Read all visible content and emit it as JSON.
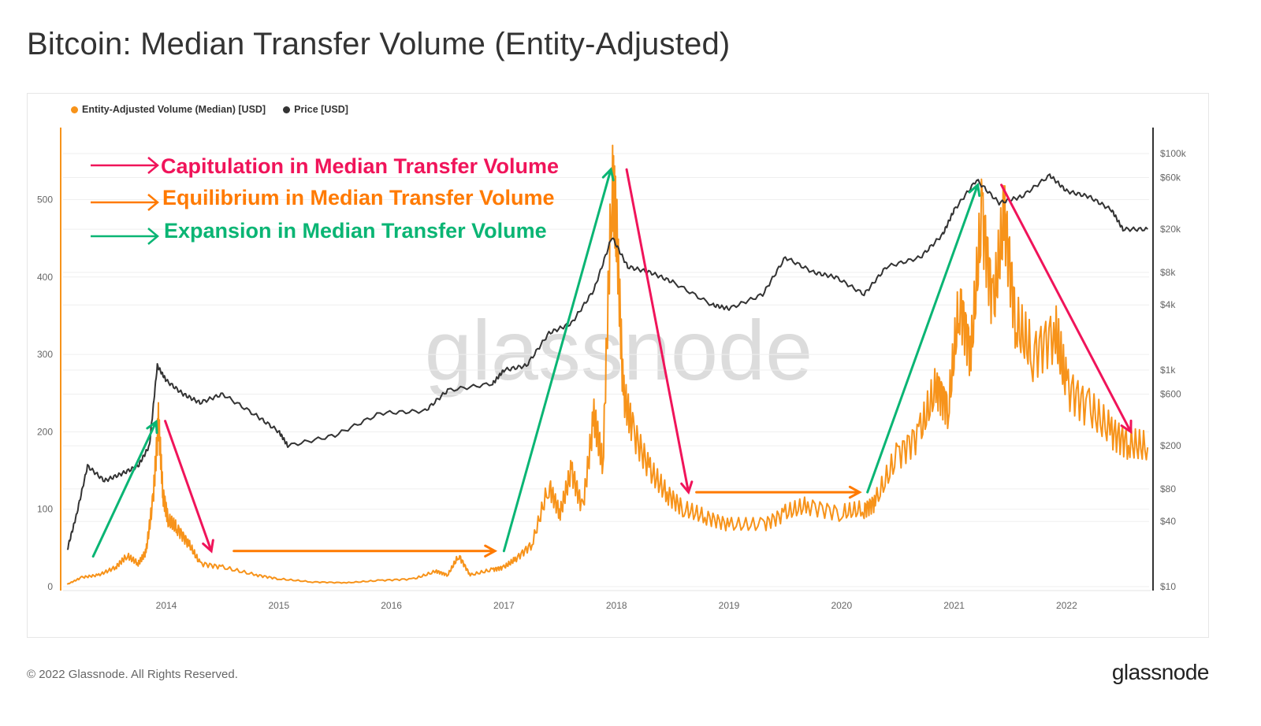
{
  "title": "Bitcoin: Median Transfer Volume (Entity-Adjusted)",
  "footer": "© 2022 Glassnode. All Rights Reserved.",
  "brand": "glassnode",
  "watermark": "glassnode",
  "annotations_text": {
    "capitulation": "Capitulation in Median Transfer Volume",
    "equilibrium": "Equilibrium in Median Transfer Volume",
    "expansion": "Expansion in Median Transfer Volume"
  },
  "colors": {
    "volume": "#f7931a",
    "price": "#333333",
    "capitulation": "#f0145a",
    "equilibrium": "#ff7a00",
    "expansion": "#0ab574"
  },
  "chart_data": {
    "type": "line",
    "title": "Bitcoin: Median Transfer Volume (Entity-Adjusted)",
    "legend": [
      "Entity-Adjusted Volume (Median) [USD]",
      "Price [USD]"
    ],
    "legend_placement": "top-left",
    "x_ticks": [
      "2014",
      "2015",
      "2016",
      "2017",
      "2018",
      "2019",
      "2020",
      "2021",
      "2022"
    ],
    "xlim": [
      2013.12,
      2022.72
    ],
    "y_left": {
      "ticks": [
        "0",
        "100",
        "200",
        "300",
        "400",
        "500"
      ],
      "values": [
        0,
        100,
        200,
        300,
        400,
        500
      ],
      "ylim": [
        0,
        560
      ],
      "scale": "linear"
    },
    "y_right": {
      "ticks": [
        "$10",
        "$40",
        "$80",
        "$200",
        "$600",
        "$1k",
        "$4k",
        "$8k",
        "$20k",
        "$60k",
        "$100k"
      ],
      "values": [
        10,
        40,
        80,
        200,
        600,
        1000,
        4000,
        8000,
        20000,
        60000,
        100000
      ],
      "scale": "log"
    },
    "series": [
      {
        "name": "Entity-Adjusted Volume (Median) [USD]",
        "axis": "left",
        "x": [
          2013.12,
          2013.25,
          2013.4,
          2013.55,
          2013.65,
          2013.75,
          2013.82,
          2013.88,
          2013.93,
          2013.97,
          2014.02,
          2014.1,
          2014.2,
          2014.3,
          2014.5,
          2014.8,
          2015.0,
          2015.3,
          2015.6,
          2015.9,
          2016.2,
          2016.4,
          2016.5,
          2016.6,
          2016.7,
          2016.9,
          2017.0,
          2017.1,
          2017.25,
          2017.4,
          2017.5,
          2017.6,
          2017.7,
          2017.8,
          2017.88,
          2017.96,
          2018.0,
          2018.06,
          2018.15,
          2018.3,
          2018.45,
          2018.6,
          2018.8,
          2019.0,
          2019.3,
          2019.5,
          2019.7,
          2020.0,
          2020.2,
          2020.3,
          2020.5,
          2020.7,
          2020.85,
          2020.95,
          2021.05,
          2021.15,
          2021.25,
          2021.35,
          2021.45,
          2021.55,
          2021.7,
          2021.9,
          2022.0,
          2022.2,
          2022.4,
          2022.55,
          2022.72
        ],
        "values": [
          3,
          12,
          15,
          25,
          40,
          30,
          45,
          110,
          213,
          120,
          85,
          75,
          55,
          30,
          25,
          15,
          10,
          6,
          5,
          8,
          10,
          20,
          15,
          40,
          15,
          22,
          25,
          35,
          55,
          130,
          95,
          150,
          100,
          220,
          160,
          524,
          470,
          250,
          200,
          150,
          120,
          100,
          90,
          80,
          80,
          95,
          105,
          95,
          100,
          110,
          170,
          200,
          260,
          230,
          370,
          300,
          483,
          360,
          480,
          340,
          300,
          330,
          260,
          230,
          200,
          185,
          180
        ]
      },
      {
        "name": "Price [USD]",
        "axis": "right",
        "x": [
          2013.12,
          2013.2,
          2013.3,
          2013.45,
          2013.6,
          2013.75,
          2013.85,
          2013.92,
          2014.0,
          2014.15,
          2014.3,
          2014.5,
          2014.8,
          2015.0,
          2015.08,
          2015.5,
          2015.9,
          2016.3,
          2016.5,
          2016.9,
          2017.0,
          2017.2,
          2017.4,
          2017.6,
          2017.8,
          2017.96,
          2018.1,
          2018.3,
          2018.5,
          2018.85,
          2019.0,
          2019.3,
          2019.5,
          2019.75,
          2019.95,
          2020.2,
          2020.4,
          2020.7,
          2020.9,
          2021.0,
          2021.2,
          2021.4,
          2021.6,
          2021.85,
          2022.0,
          2022.2,
          2022.4,
          2022.5,
          2022.72
        ],
        "values": [
          22,
          45,
          130,
          95,
          110,
          130,
          200,
          1100,
          800,
          600,
          500,
          600,
          380,
          270,
          200,
          250,
          400,
          420,
          650,
          750,
          1000,
          1100,
          2200,
          2700,
          5500,
          17000,
          9000,
          8000,
          6500,
          4000,
          3700,
          5000,
          11000,
          8000,
          7200,
          5000,
          9000,
          11000,
          18000,
          30000,
          57000,
          35000,
          40000,
          63000,
          45000,
          40000,
          30000,
          20000,
          20000
        ]
      }
    ],
    "annotations": [
      {
        "type": "expansion",
        "from": [
          2013.35,
          39
        ],
        "to": [
          2013.91,
          213
        ]
      },
      {
        "type": "capitulation",
        "from": [
          2013.99,
          214
        ],
        "to": [
          2014.4,
          46
        ]
      },
      {
        "type": "equilibrium",
        "from": [
          2014.6,
          46
        ],
        "to": [
          2016.92,
          46
        ]
      },
      {
        "type": "expansion",
        "from": [
          2017.0,
          46
        ],
        "to": [
          2017.95,
          539
        ]
      },
      {
        "type": "capitulation",
        "from": [
          2018.09,
          539
        ],
        "to": [
          2018.64,
          122
        ]
      },
      {
        "type": "equilibrium",
        "from": [
          2018.71,
          122
        ],
        "to": [
          2020.16,
          122
        ]
      },
      {
        "type": "expansion",
        "from": [
          2020.23,
          122
        ],
        "to": [
          2021.21,
          519
        ]
      },
      {
        "type": "capitulation",
        "from": [
          2021.42,
          519
        ],
        "to": [
          2022.57,
          200
        ]
      }
    ]
  }
}
